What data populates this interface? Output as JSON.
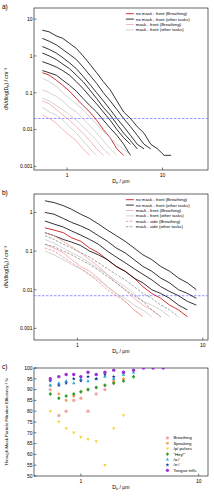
{
  "chart_data": [
    {
      "type": "line",
      "title": "a)",
      "x_label": "Dₚ / μm",
      "y_label": "dN/dlog(Dₚ) / cm⁻³",
      "log": true,
      "grid": false,
      "legend": "upper right",
      "xlim": [
        0.45,
        30
      ],
      "xticks": [
        1,
        10
      ],
      "ylim": [
        0.0008,
        20
      ],
      "yticks": [
        0.001,
        0.01,
        0.1,
        1,
        10
      ],
      "x": [
        0.55,
        0.65,
        0.77,
        0.9,
        1.06,
        1.25,
        1.47,
        1.73,
        2.04,
        2.4,
        2.83,
        3.33,
        3.92,
        4.62,
        5.44,
        6.4,
        7.54,
        8.88,
        10.4,
        12.3
      ],
      "hlines": [
        {
          "y": 0.02,
          "color": "#6a6aff",
          "line_style": "dashed"
        }
      ],
      "series": [
        {
          "name": "no mask - front (Breathing)",
          "color": "#c00000",
          "line_style": "solid",
          "values": [
            0.35,
            0.3,
            0.22,
            0.16,
            0.11,
            0.07,
            0.045,
            0.03,
            0.018,
            0.01,
            0.006,
            0.003,
            0.002,
            null,
            null,
            null,
            null,
            null,
            null,
            null
          ]
        },
        {
          "name": "no mask - front (other tasks)",
          "color": "#000000",
          "line_style": "solid",
          "values": [
            5,
            4.5,
            3.5,
            3,
            2.2,
            1.6,
            1,
            0.6,
            0.35,
            0.2,
            0.12,
            0.06,
            0.03,
            0.02,
            0.012,
            0.008,
            0.004,
            0.003,
            0.002,
            0.002
          ]
        },
        {
          "name": "no mask - front (other tasks)",
          "color": "#000000",
          "line_style": "solid",
          "values": [
            3,
            2.5,
            2,
            1.5,
            1.1,
            0.8,
            0.5,
            0.3,
            0.18,
            0.1,
            0.06,
            0.035,
            0.02,
            0.012,
            0.007,
            0.004,
            0.003,
            null,
            null,
            null
          ]
        },
        {
          "name": "no mask - front (other tasks)",
          "color": "#000000",
          "line_style": "solid",
          "values": [
            1.8,
            1.5,
            1.2,
            0.9,
            0.65,
            0.45,
            0.28,
            0.17,
            0.1,
            0.06,
            0.035,
            0.02,
            0.012,
            0.007,
            0.004,
            0.003,
            null,
            null,
            null,
            null
          ]
        },
        {
          "name": "no mask - front (other tasks)",
          "color": "#000000",
          "line_style": "solid",
          "values": [
            1.2,
            1,
            0.8,
            0.6,
            0.45,
            0.3,
            0.2,
            0.12,
            0.07,
            0.04,
            0.025,
            0.014,
            0.008,
            0.005,
            0.003,
            null,
            null,
            null,
            null,
            null
          ]
        },
        {
          "name": "no mask - front (other tasks)",
          "color": "#000000",
          "line_style": "solid",
          "values": [
            0.7,
            0.6,
            0.5,
            0.4,
            0.3,
            0.2,
            0.13,
            0.08,
            0.05,
            0.03,
            0.018,
            0.01,
            0.006,
            0.004,
            null,
            null,
            null,
            null,
            null,
            null
          ]
        },
        {
          "name": "no mask - front (other tasks)",
          "color": "#000000",
          "line_style": "solid",
          "values": [
            0.4,
            0.35,
            0.3,
            0.22,
            0.16,
            0.11,
            0.07,
            0.045,
            0.03,
            0.018,
            0.011,
            0.007,
            0.004,
            0.002,
            null,
            null,
            null,
            null,
            null,
            null
          ]
        },
        {
          "name": "mask - front (Breathing)",
          "color": "#f4a6a6",
          "line_style": "solid",
          "values": [
            0.06,
            0.05,
            0.035,
            0.025,
            0.018,
            0.012,
            0.008,
            0.005,
            0.003,
            0.002,
            null,
            null,
            null,
            null,
            null,
            null,
            null,
            null,
            null,
            null
          ]
        },
        {
          "name": "mask - front (Breathing)",
          "color": "#f4a6a6",
          "line_style": "solid",
          "values": [
            0.025,
            0.02,
            0.015,
            0.01,
            0.007,
            0.005,
            0.003,
            0.002,
            null,
            null,
            null,
            null,
            null,
            null,
            null,
            null,
            null,
            null,
            null,
            null
          ]
        },
        {
          "name": "mask - front (other tasks)",
          "color": "#c8c8c8",
          "line_style": "solid",
          "values": [
            0.25,
            0.2,
            0.15,
            0.1,
            0.07,
            0.05,
            0.035,
            0.022,
            0.014,
            0.009,
            0.006,
            0.004,
            0.003,
            0.002,
            null,
            null,
            null,
            null,
            null,
            null
          ]
        },
        {
          "name": "mask - front (other tasks)",
          "color": "#c8c8c8",
          "line_style": "solid",
          "values": [
            0.12,
            0.1,
            0.08,
            0.06,
            0.04,
            0.03,
            0.02,
            0.013,
            0.008,
            0.005,
            0.003,
            0.002,
            null,
            null,
            null,
            null,
            null,
            null,
            null,
            null
          ]
        },
        {
          "name": "mask - front (other tasks)",
          "color": "#c8c8c8",
          "line_style": "solid",
          "values": [
            0.07,
            0.06,
            0.045,
            0.035,
            0.025,
            0.018,
            0.012,
            0.008,
            0.005,
            0.003,
            0.002,
            null,
            null,
            null,
            null,
            null,
            null,
            null,
            null,
            null
          ]
        },
        {
          "name": "mask - front (other tasks)",
          "color": "#c8c8c8",
          "line_style": "solid",
          "values": [
            0.04,
            0.03,
            0.025,
            0.018,
            0.012,
            0.008,
            0.005,
            0.003,
            0.002,
            null,
            null,
            null,
            null,
            null,
            null,
            null,
            null,
            null,
            null,
            null
          ]
        }
      ]
    },
    {
      "type": "line",
      "title": "b)",
      "x_label": "Dₚ / μm",
      "y_label": "dN/dlog(Dₚ) / cm⁻³",
      "log": true,
      "grid": false,
      "legend": "upper right",
      "xlim": [
        0.45,
        11
      ],
      "xticks": [
        1,
        10
      ],
      "ylim": [
        0.0005,
        3
      ],
      "yticks": [
        0.001,
        0.01,
        0.1,
        1
      ],
      "x": [
        0.55,
        0.65,
        0.77,
        0.9,
        1.06,
        1.25,
        1.47,
        1.73,
        2.04,
        2.4,
        2.83,
        3.33,
        3.92,
        4.62,
        5.44,
        6.4,
        7.54,
        8.88
      ],
      "hlines": [
        {
          "y": 0.007,
          "color": "#6a6aff",
          "line_style": "dashed"
        }
      ],
      "series": [
        {
          "name": "no mask - front (Breathing)",
          "color": "#c00000",
          "line_style": "solid",
          "values": [
            0.4,
            0.35,
            0.3,
            0.22,
            0.18,
            0.12,
            0.09,
            0.06,
            0.04,
            0.03,
            0.02,
            0.012,
            0.008,
            0.006,
            0.004,
            0.003,
            0.002,
            null
          ]
        },
        {
          "name": "no mask - front (other tasks)",
          "color": "#000000",
          "line_style": "solid",
          "values": [
            2,
            1.8,
            1.5,
            1.2,
            0.9,
            0.7,
            0.5,
            0.35,
            0.25,
            0.18,
            0.12,
            0.08,
            0.06,
            0.04,
            0.03,
            0.02,
            0.015,
            0.01
          ]
        },
        {
          "name": "no mask - front (other tasks)",
          "color": "#000000",
          "line_style": "solid",
          "values": [
            1,
            0.9,
            0.7,
            0.55,
            0.45,
            0.35,
            0.25,
            0.18,
            0.12,
            0.09,
            0.06,
            0.04,
            0.03,
            0.02,
            0.015,
            0.01,
            0.008,
            0.006
          ]
        },
        {
          "name": "no mask - front (other tasks)",
          "color": "#000000",
          "line_style": "solid",
          "values": [
            0.6,
            0.5,
            0.42,
            0.33,
            0.26,
            0.2,
            0.15,
            0.1,
            0.07,
            0.05,
            0.035,
            0.025,
            0.018,
            0.012,
            0.009,
            0.007,
            0.005,
            0.004
          ]
        },
        {
          "name": "no mask - front (other tasks)",
          "color": "#000000",
          "line_style": "solid",
          "values": [
            0.3,
            0.25,
            0.2,
            0.17,
            0.14,
            0.1,
            0.08,
            0.06,
            0.04,
            0.03,
            0.02,
            0.015,
            0.01,
            0.008,
            0.006,
            0.004,
            0.003,
            null
          ]
        },
        {
          "name": "mask - front (Breathing)",
          "color": "#f4a6a6",
          "line_style": "solid",
          "values": [
            0.3,
            0.25,
            0.18,
            0.13,
            0.09,
            0.06,
            0.04,
            0.025,
            0.015,
            0.01,
            0.006,
            0.004,
            0.003,
            0.002,
            null,
            null,
            null,
            null
          ]
        },
        {
          "name": "mask - front (Breathing)",
          "color": "#f4a6a6",
          "line_style": "solid",
          "values": [
            0.15,
            0.12,
            0.09,
            0.06,
            0.04,
            0.03,
            0.02,
            0.012,
            0.008,
            0.005,
            0.003,
            0.002,
            null,
            null,
            null,
            null,
            null,
            null
          ]
        },
        {
          "name": "mask - front (other tasks)",
          "color": "#c8c8c8",
          "line_style": "solid",
          "values": [
            0.2,
            0.16,
            0.12,
            0.09,
            0.07,
            0.05,
            0.035,
            0.025,
            0.017,
            0.012,
            0.008,
            0.005,
            0.004,
            0.003,
            0.002,
            null,
            null,
            null
          ]
        },
        {
          "name": "mask - front (other tasks)",
          "color": "#c8c8c8",
          "line_style": "solid",
          "values": [
            0.1,
            0.08,
            0.06,
            0.045,
            0.035,
            0.025,
            0.018,
            0.012,
            0.008,
            0.006,
            0.004,
            0.003,
            0.002,
            null,
            null,
            null,
            null,
            null
          ]
        },
        {
          "name": "mask - side (Breathing)",
          "color": "#e88a8a",
          "line_style": "dashed",
          "values": [
            0.12,
            0.1,
            0.07,
            0.05,
            0.035,
            0.024,
            0.016,
            0.01,
            0.007,
            0.005,
            0.003,
            0.002,
            null,
            null,
            null,
            null,
            null,
            null
          ]
        },
        {
          "name": "mask - side (other tasks)",
          "color": "#8c8c8c",
          "line_style": "dashed",
          "values": [
            0.25,
            0.2,
            0.15,
            0.12,
            0.09,
            0.07,
            0.05,
            0.035,
            0.025,
            0.018,
            0.012,
            0.008,
            0.006,
            0.004,
            0.003,
            0.002,
            null,
            null
          ]
        },
        {
          "name": "mask - side (other tasks)",
          "color": "#8c8c8c",
          "line_style": "dashed",
          "values": [
            0.15,
            0.13,
            0.1,
            0.08,
            0.06,
            0.045,
            0.032,
            0.022,
            0.015,
            0.01,
            0.007,
            0.005,
            0.003,
            0.002,
            null,
            null,
            null,
            null
          ]
        }
      ]
    },
    {
      "type": "scatter",
      "title": "c)",
      "x_label": "Dₚ / μm",
      "y_label": "Through-Mask Particle Filtration Efficiency / %",
      "log": "x",
      "grid": false,
      "legend": "lower right",
      "xlim": [
        0.4,
        12
      ],
      "xticks": [
        1,
        10
      ],
      "ylim": [
        50,
        100
      ],
      "yticks": [
        50,
        55,
        60,
        65,
        70,
        75,
        80,
        85,
        90,
        95,
        100
      ],
      "series": [
        {
          "name": "Breathing",
          "color": "#f4a6a6",
          "marker": "circle",
          "x": [
            0.55,
            0.65,
            0.75,
            0.87,
            1.0,
            1.15,
            1.35,
            1.6,
            1.9
          ],
          "values": [
            90,
            78,
            80,
            85,
            86,
            80,
            88,
            90,
            93
          ]
        },
        {
          "name": "Speaking",
          "color": "#f5a25d",
          "marker": "pentagon",
          "x": [
            0.55,
            0.65,
            0.75,
            0.87,
            1.0,
            1.15,
            1.35,
            1.6,
            1.9,
            2.3
          ],
          "values": [
            92,
            88,
            85,
            87,
            89,
            90,
            91,
            92,
            94,
            95
          ]
        },
        {
          "name": "/p/ pulses",
          "color": "#f7d23c",
          "marker": "triangle-down",
          "x": [
            0.55,
            0.65,
            0.75,
            0.87,
            1.0,
            1.15,
            1.35,
            1.6,
            1.9,
            2.3
          ],
          "values": [
            80,
            75,
            72,
            70,
            68,
            67,
            66,
            55,
            72,
            78
          ]
        },
        {
          "name": "\"Hey!\"",
          "color": "#2ca02c",
          "marker": "diamond",
          "x": [
            0.55,
            0.65,
            0.75,
            0.87,
            1.0,
            1.15,
            1.35,
            1.6,
            1.9,
            2.3,
            2.8
          ],
          "values": [
            88,
            86,
            87,
            88,
            89,
            90,
            91,
            92,
            93,
            94,
            96
          ]
        },
        {
          "name": "/a:/",
          "color": "#29a8e0",
          "marker": "triangle",
          "x": [
            0.55,
            0.65,
            0.75,
            0.87,
            1.0,
            1.15,
            1.35,
            1.6,
            1.9,
            2.3,
            2.8
          ],
          "values": [
            92,
            93,
            94,
            93,
            95,
            94,
            95,
            96,
            95,
            97,
            98
          ]
        },
        {
          "name": "/e:/",
          "color": "#1f3f9f",
          "marker": "star",
          "x": [
            0.55,
            0.65,
            0.75,
            0.87,
            1.0,
            1.15,
            1.35,
            1.6,
            1.9,
            2.3
          ],
          "values": [
            94,
            92,
            93,
            95,
            94,
            96,
            95,
            97,
            96,
            98
          ]
        },
        {
          "name": "Tongue trills",
          "color": "#9b30d9",
          "marker": "circle",
          "x": [
            0.55,
            0.65,
            0.75,
            0.87,
            1.0,
            1.15,
            1.35,
            1.6,
            1.9,
            2.3,
            2.8,
            3.4,
            4.1,
            5
          ],
          "values": [
            95,
            96,
            97,
            97,
            96,
            98,
            97,
            98,
            99,
            98,
            99,
            100,
            100,
            100
          ]
        }
      ]
    }
  ]
}
